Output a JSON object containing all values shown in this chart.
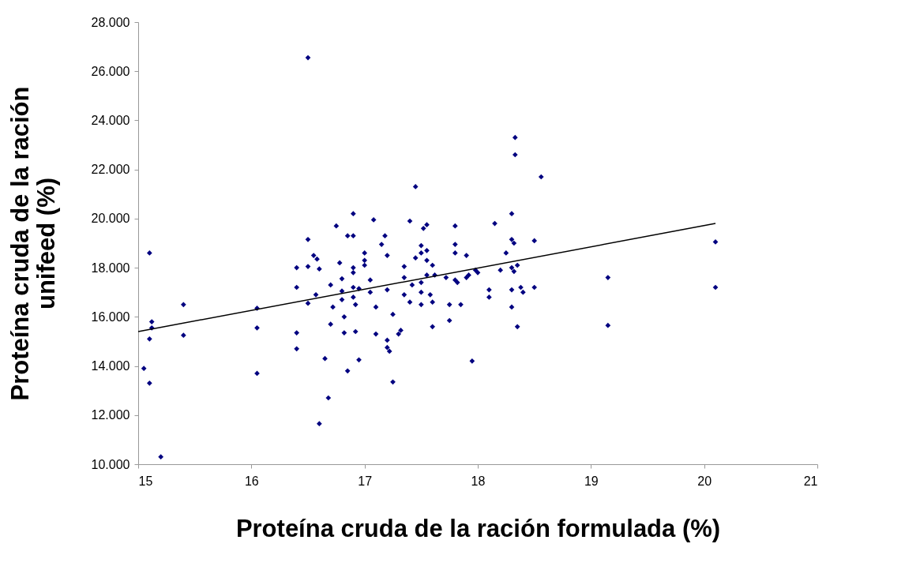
{
  "chart_data": {
    "type": "scatter",
    "xlabel": "Proteína cruda de la ración formulada (%)",
    "ylabel": "Proteína cruda de la ración\nunifeed (%)",
    "xlim": [
      15,
      21
    ],
    "xticks": [
      15,
      16,
      17,
      18,
      19,
      20,
      21
    ],
    "ylim": [
      10,
      28
    ],
    "yticks": [
      {
        "value": 10,
        "label": "10.000"
      },
      {
        "value": 12,
        "label": "12.000"
      },
      {
        "value": 14,
        "label": "14.000"
      },
      {
        "value": 16,
        "label": "16.000"
      },
      {
        "value": 18,
        "label": "18.000"
      },
      {
        "value": 20,
        "label": "20.000"
      },
      {
        "value": 22,
        "label": "22.000"
      },
      {
        "value": 24,
        "label": "24.000"
      },
      {
        "value": 26,
        "label": "26.000"
      },
      {
        "value": 28,
        "label": "28.000"
      }
    ],
    "grid": false,
    "series": [
      {
        "marker": "diamond",
        "color": "#000080",
        "x": [
          15.05,
          15.1,
          15.1,
          15.12,
          15.12,
          15.1,
          15.2,
          15.4,
          15.4,
          16.05,
          16.05,
          16.05,
          16.4,
          16.4,
          16.4,
          16.4,
          16.5,
          16.5,
          16.5,
          16.5,
          16.55,
          16.58,
          16.6,
          16.57,
          16.6,
          16.65,
          16.68,
          16.7,
          16.7,
          16.72,
          16.75,
          16.78,
          16.8,
          16.8,
          16.8,
          16.82,
          16.82,
          16.85,
          16.85,
          16.9,
          16.9,
          16.9,
          16.9,
          16.9,
          16.9,
          16.92,
          16.95,
          16.92,
          16.95,
          17.0,
          17.0,
          17.0,
          17.05,
          17.05,
          17.08,
          17.1,
          17.1,
          17.15,
          17.18,
          17.2,
          17.2,
          17.2,
          17.2,
          17.22,
          17.25,
          17.25,
          17.3,
          17.32,
          17.35,
          17.35,
          17.35,
          17.4,
          17.4,
          17.42,
          17.45,
          17.45,
          17.5,
          17.5,
          17.52,
          17.5,
          17.5,
          17.5,
          17.55,
          17.55,
          17.55,
          17.55,
          17.58,
          17.6,
          17.6,
          17.6,
          17.62,
          17.72,
          17.75,
          17.75,
          17.8,
          17.8,
          17.8,
          17.8,
          17.82,
          17.85,
          17.9,
          17.9,
          17.92,
          17.95,
          17.98,
          18.0,
          18.1,
          18.1,
          18.15,
          18.2,
          18.25,
          18.33,
          18.33,
          18.3,
          18.3,
          18.32,
          18.3,
          18.32,
          18.35,
          18.3,
          18.3,
          18.35,
          18.38,
          18.4,
          18.56,
          18.5,
          18.5,
          19.15,
          19.15,
          20.1,
          20.1
        ],
        "values": [
          13.9,
          13.3,
          18.6,
          15.8,
          15.55,
          15.1,
          10.3,
          16.5,
          15.25,
          16.35,
          15.55,
          13.7,
          18.0,
          17.2,
          15.35,
          14.7,
          26.55,
          19.15,
          18.05,
          16.55,
          18.5,
          18.35,
          17.95,
          16.9,
          11.65,
          14.3,
          12.7,
          17.3,
          15.7,
          16.4,
          19.7,
          18.2,
          17.55,
          17.05,
          16.7,
          15.35,
          16.0,
          13.8,
          19.3,
          20.2,
          19.3,
          18.0,
          17.8,
          17.2,
          16.8,
          16.5,
          17.15,
          15.4,
          14.25,
          18.6,
          18.3,
          18.1,
          17.5,
          17.0,
          19.95,
          16.4,
          15.3,
          18.95,
          19.3,
          18.5,
          17.1,
          15.05,
          14.75,
          14.6,
          16.1,
          13.35,
          15.3,
          15.45,
          16.9,
          17.6,
          18.05,
          19.9,
          16.6,
          17.3,
          18.4,
          21.3,
          18.9,
          18.6,
          19.6,
          17.4,
          17.0,
          16.5,
          19.75,
          18.7,
          18.3,
          17.7,
          16.9,
          16.6,
          15.6,
          18.1,
          17.7,
          17.6,
          16.5,
          15.85,
          19.7,
          18.95,
          18.6,
          17.5,
          17.4,
          16.5,
          18.5,
          17.6,
          17.7,
          14.2,
          17.9,
          17.8,
          17.1,
          16.8,
          19.8,
          17.9,
          18.6,
          23.3,
          22.6,
          20.2,
          19.15,
          19.0,
          18.0,
          17.85,
          18.1,
          17.1,
          16.4,
          15.6,
          17.2,
          17.0,
          21.7,
          19.1,
          17.2,
          17.6,
          15.65,
          19.05,
          17.2
        ]
      },
      {
        "type": "line",
        "color": "#000000",
        "x": [
          15,
          20.1
        ],
        "values": [
          15.4,
          19.8
        ]
      }
    ]
  }
}
